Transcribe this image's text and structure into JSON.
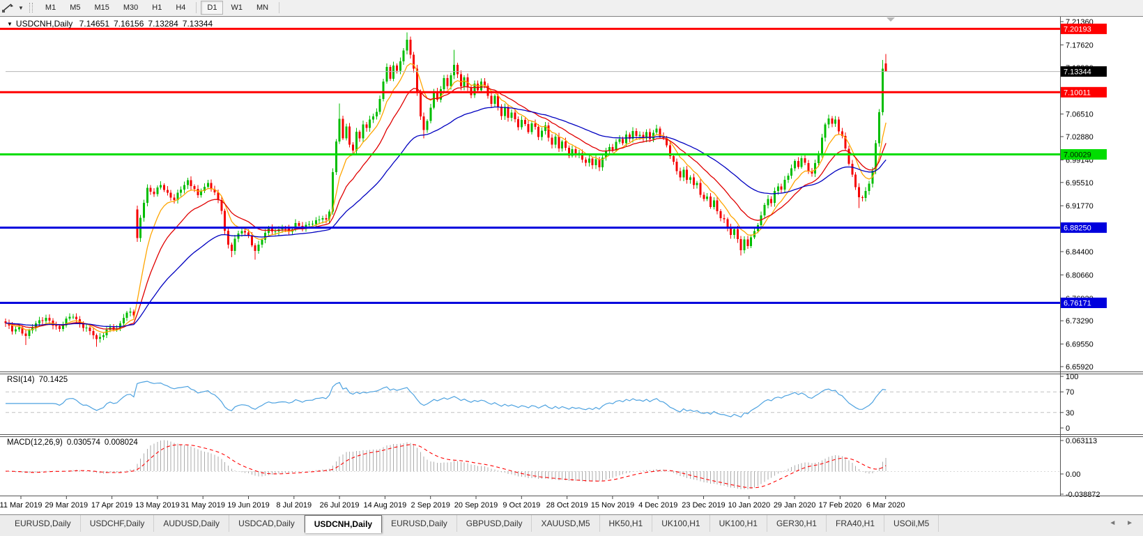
{
  "toolbar": {
    "timeframes": [
      "M1",
      "M5",
      "M15",
      "M30",
      "H1",
      "H4",
      "D1",
      "W1",
      "MN"
    ],
    "active_timeframe": "D1",
    "caret_icon": "▼"
  },
  "chart": {
    "title_marker": "▼",
    "symbol": "USDCNH,Daily",
    "ohlc": {
      "open": "7.14651",
      "high": "7.16156",
      "low": "7.13284",
      "close": "7.13344"
    }
  },
  "rsi_panel": {
    "label": "RSI(14)",
    "value": "70.1425",
    "axis_labels": [
      "100",
      "70",
      "30",
      "0"
    ],
    "level_lines": [
      70,
      30
    ],
    "line_color": "#4da2e0"
  },
  "macd_panel": {
    "label": "MACD(12,26,9)",
    "value_main": "0.030574",
    "value_signal": "0.008024",
    "axis_max": "0.063113",
    "axis_zero": "0.00",
    "axis_min": "-0.038872",
    "histogram_color": "#ababab",
    "signal_color": "#ff0000"
  },
  "price_scale": {
    "ticks": [
      "7.21360",
      "7.17620",
      "7.13990",
      "7.06510",
      "7.02880",
      "6.99140",
      "6.95510",
      "6.91770",
      "6.84400",
      "6.80660",
      "6.76920",
      "6.73290",
      "6.69550",
      "6.65920"
    ],
    "tags": [
      {
        "value": "7.20193",
        "bg": "#ff0000",
        "fg": "#ffffff"
      },
      {
        "value": "7.13344",
        "bg": "#000000",
        "fg": "#ffffff"
      },
      {
        "value": "7.10011",
        "bg": "#ff0000",
        "fg": "#ffffff"
      },
      {
        "value": "7.00029",
        "bg": "#00dd00",
        "fg": "#002200"
      },
      {
        "value": "6.88250",
        "bg": "#0000dd",
        "fg": "#ffffff"
      },
      {
        "value": "6.76171",
        "bg": "#0000dd",
        "fg": "#ffffff"
      }
    ]
  },
  "chart_data": {
    "type": "candlestick",
    "symbol": "USDCNH",
    "timeframe": "Daily",
    "title": "USDCNH,Daily",
    "x_axis_dates": [
      "11 Mar 2019",
      "29 Mar 2019",
      "17 Apr 2019",
      "13 May 2019",
      "31 May 2019",
      "19 Jun 2019",
      "8 Jul 2019",
      "26 Jul 2019",
      "14 Aug 2019",
      "2 Sep 2019",
      "20 Sep 2019",
      "9 Oct 2019",
      "28 Oct 2019",
      "15 Nov 2019",
      "4 Dec 2019",
      "23 Dec 2019",
      "10 Jan 2020",
      "29 Jan 2020",
      "17 Feb 2020",
      "6 Mar 2020"
    ],
    "y_axis_range": [
      6.655,
      7.224
    ],
    "grid": false,
    "current_price": 7.13344,
    "last_candle": {
      "open": 7.14651,
      "high": 7.16156,
      "low": 7.13284,
      "close": 7.13344
    },
    "levels": [
      {
        "price": 7.20193,
        "color": "#ff0000",
        "width": 3,
        "name": "resistance-upper"
      },
      {
        "price": 7.10011,
        "color": "#ff0000",
        "width": 3,
        "name": "resistance-lower"
      },
      {
        "price": 7.00029,
        "color": "#00dd00",
        "width": 3,
        "name": "pivot-7.00"
      },
      {
        "price": 6.8825,
        "color": "#0000dd",
        "width": 3,
        "name": "support-upper"
      },
      {
        "price": 6.76171,
        "color": "#0000dd",
        "width": 3,
        "name": "support-lower"
      }
    ],
    "candle_count": 262,
    "up_color": "#00bd00",
    "down_color": "#f50000",
    "close_waypoints": [
      [
        0,
        6.728
      ],
      [
        2,
        6.718
      ],
      [
        4,
        6.722
      ],
      [
        6,
        6.708
      ],
      [
        8,
        6.722
      ],
      [
        10,
        6.732
      ],
      [
        12,
        6.738
      ],
      [
        14,
        6.728
      ],
      [
        16,
        6.718
      ],
      [
        18,
        6.734
      ],
      [
        20,
        6.742
      ],
      [
        22,
        6.728
      ],
      [
        24,
        6.72
      ],
      [
        26,
        6.71
      ],
      [
        27,
        6.701
      ],
      [
        29,
        6.712
      ],
      [
        31,
        6.724
      ],
      [
        33,
        6.718
      ],
      [
        35,
        6.738
      ],
      [
        37,
        6.748
      ],
      [
        38,
        6.744
      ],
      [
        39,
        6.866
      ],
      [
        40,
        6.9
      ],
      [
        41,
        6.924
      ],
      [
        42,
        6.944
      ],
      [
        44,
        6.936
      ],
      [
        46,
        6.952
      ],
      [
        48,
        6.938
      ],
      [
        50,
        6.928
      ],
      [
        52,
        6.944
      ],
      [
        54,
        6.956
      ],
      [
        56,
        6.946
      ],
      [
        57,
        6.934
      ],
      [
        58,
        6.944
      ],
      [
        60,
        6.952
      ],
      [
        62,
        6.938
      ],
      [
        64,
        6.912
      ],
      [
        65,
        6.878
      ],
      [
        66,
        6.855
      ],
      [
        67,
        6.848
      ],
      [
        68,
        6.864
      ],
      [
        70,
        6.878
      ],
      [
        72,
        6.868
      ],
      [
        74,
        6.845
      ],
      [
        76,
        6.866
      ],
      [
        78,
        6.88
      ],
      [
        80,
        6.874
      ],
      [
        82,
        6.884
      ],
      [
        84,
        6.877
      ],
      [
        86,
        6.888
      ],
      [
        88,
        6.881
      ],
      [
        90,
        6.888
      ],
      [
        92,
        6.894
      ],
      [
        94,
        6.9
      ],
      [
        95,
        6.893
      ],
      [
        96,
        6.908
      ],
      [
        97,
        6.972
      ],
      [
        98,
        7.018
      ],
      [
        99,
        7.058
      ],
      [
        100,
        7.028
      ],
      [
        101,
        7.044
      ],
      [
        102,
        7.018
      ],
      [
        103,
        7.008
      ],
      [
        104,
        7.034
      ],
      [
        105,
        7.026
      ],
      [
        106,
        7.048
      ],
      [
        107,
        7.04
      ],
      [
        108,
        7.058
      ],
      [
        110,
        7.068
      ],
      [
        111,
        7.092
      ],
      [
        112,
        7.118
      ],
      [
        113,
        7.138
      ],
      [
        114,
        7.122
      ],
      [
        115,
        7.142
      ],
      [
        116,
        7.132
      ],
      [
        117,
        7.152
      ],
      [
        118,
        7.168
      ],
      [
        119,
        7.184
      ],
      [
        120,
        7.163
      ],
      [
        121,
        7.138
      ],
      [
        122,
        7.098
      ],
      [
        123,
        7.062
      ],
      [
        124,
        7.038
      ],
      [
        125,
        7.052
      ],
      [
        126,
        7.078
      ],
      [
        127,
        7.102
      ],
      [
        128,
        7.088
      ],
      [
        129,
        7.108
      ],
      [
        130,
        7.122
      ],
      [
        131,
        7.108
      ],
      [
        132,
        7.128
      ],
      [
        133,
        7.142
      ],
      [
        134,
        7.128
      ],
      [
        135,
        7.112
      ],
      [
        136,
        7.124
      ],
      [
        137,
        7.108
      ],
      [
        138,
        7.098
      ],
      [
        139,
        7.112
      ],
      [
        140,
        7.102
      ],
      [
        141,
        7.118
      ],
      [
        142,
        7.108
      ],
      [
        143,
        7.094
      ],
      [
        144,
        7.084
      ],
      [
        145,
        7.094
      ],
      [
        146,
        7.078
      ],
      [
        147,
        7.064
      ],
      [
        148,
        7.074
      ],
      [
        149,
        7.058
      ],
      [
        150,
        7.068
      ],
      [
        151,
        7.054
      ],
      [
        152,
        7.044
      ],
      [
        153,
        7.058
      ],
      [
        154,
        7.048
      ],
      [
        155,
        7.038
      ],
      [
        156,
        7.052
      ],
      [
        157,
        7.042
      ],
      [
        158,
        7.028
      ],
      [
        159,
        7.038
      ],
      [
        160,
        7.044
      ],
      [
        161,
        7.028
      ],
      [
        162,
        7.018
      ],
      [
        163,
        7.028
      ],
      [
        164,
        7.012
      ],
      [
        165,
        7.022
      ],
      [
        166,
        7.008
      ],
      [
        167,
        6.998
      ],
      [
        168,
        7.008
      ],
      [
        169,
        6.996
      ],
      [
        170,
        7.004
      ],
      [
        171,
        6.993
      ],
      [
        172,
        6.986
      ],
      [
        173,
        6.996
      ],
      [
        174,
        6.983
      ],
      [
        175,
        6.99
      ],
      [
        176,
        6.98
      ],
      [
        177,
        6.994
      ],
      [
        178,
        7.004
      ],
      [
        179,
        7.014
      ],
      [
        180,
        7.008
      ],
      [
        181,
        7.02
      ],
      [
        182,
        7.028
      ],
      [
        183,
        7.018
      ],
      [
        184,
        7.03
      ],
      [
        185,
        7.026
      ],
      [
        186,
        7.036
      ],
      [
        187,
        7.028
      ],
      [
        188,
        7.034
      ],
      [
        189,
        7.026
      ],
      [
        190,
        7.036
      ],
      [
        191,
        7.028
      ],
      [
        192,
        7.034
      ],
      [
        193,
        7.04
      ],
      [
        194,
        7.03
      ],
      [
        195,
        7.024
      ],
      [
        196,
        7.014
      ],
      [
        197,
        7.0
      ],
      [
        198,
        6.988
      ],
      [
        199,
        6.974
      ],
      [
        200,
        6.966
      ],
      [
        201,
        6.974
      ],
      [
        202,
        6.958
      ],
      [
        203,
        6.964
      ],
      [
        204,
        6.948
      ],
      [
        205,
        6.954
      ],
      [
        206,
        6.938
      ],
      [
        207,
        6.928
      ],
      [
        208,
        6.934
      ],
      [
        209,
        6.918
      ],
      [
        210,
        6.924
      ],
      [
        211,
        6.908
      ],
      [
        212,
        6.898
      ],
      [
        213,
        6.893
      ],
      [
        214,
        6.883
      ],
      [
        215,
        6.873
      ],
      [
        216,
        6.879
      ],
      [
        217,
        6.866
      ],
      [
        218,
        6.848
      ],
      [
        219,
        6.861
      ],
      [
        220,
        6.853
      ],
      [
        221,
        6.867
      ],
      [
        222,
        6.874
      ],
      [
        223,
        6.888
      ],
      [
        224,
        6.904
      ],
      [
        225,
        6.918
      ],
      [
        226,
        6.931
      ],
      [
        227,
        6.923
      ],
      [
        228,
        6.939
      ],
      [
        229,
        6.949
      ],
      [
        230,
        6.943
      ],
      [
        231,
        6.957
      ],
      [
        232,
        6.968
      ],
      [
        233,
        6.979
      ],
      [
        234,
        6.989
      ],
      [
        235,
        6.983
      ],
      [
        236,
        6.994
      ],
      [
        237,
        6.984
      ],
      [
        238,
        6.974
      ],
      [
        239,
        6.968
      ],
      [
        240,
        6.984
      ],
      [
        241,
        7.004
      ],
      [
        242,
        7.028
      ],
      [
        243,
        7.048
      ],
      [
        244,
        7.061
      ],
      [
        245,
        7.049
      ],
      [
        246,
        7.054
      ],
      [
        247,
        7.038
      ],
      [
        248,
        7.028
      ],
      [
        249,
        7.008
      ],
      [
        250,
        6.988
      ],
      [
        251,
        6.968
      ],
      [
        252,
        6.948
      ],
      [
        253,
        6.934
      ],
      [
        254,
        6.929
      ],
      [
        255,
        6.94
      ],
      [
        256,
        6.954
      ],
      [
        257,
        6.974
      ],
      [
        258,
        7.018
      ],
      [
        259,
        7.068
      ],
      [
        260,
        7.138
      ],
      [
        261,
        7.13344
      ]
    ],
    "open_overrides": {
      "39": 6.912,
      "261": 7.14651
    },
    "high_overrides": {
      "99": 7.082,
      "119": 7.196,
      "133": 7.168,
      "260": 7.152,
      "261": 7.16156
    },
    "low_overrides": {
      "6": 6.694,
      "27": 6.691,
      "67": 6.835,
      "74": 6.831,
      "124": 7.026,
      "218": 6.838,
      "253": 6.914,
      "261": 7.13284
    },
    "moving_averages": [
      {
        "period": 8,
        "color": "#ffa500",
        "name": "ma-fast-orange"
      },
      {
        "period": 18,
        "color": "#e00000",
        "name": "ma-mid-red"
      },
      {
        "period": 45,
        "color": "#0000c0",
        "name": "ma-slow-blue"
      }
    ],
    "indicators": {
      "rsi_period": 14,
      "macd": [
        12,
        26,
        9
      ]
    }
  },
  "tabs": {
    "items": [
      "EURUSD,Daily",
      "USDCHF,Daily",
      "AUDUSD,Daily",
      "USDCAD,Daily",
      "USDCNH,Daily",
      "EURUSD,Daily",
      "GBPUSD,Daily",
      "XAUUSD,M5",
      "HK50,H1",
      "UK100,H1",
      "UK100,H1",
      "GER30,H1",
      "FRA40,H1",
      "USOil,M5"
    ],
    "active_index": 4,
    "scroll_left_icon": "◄",
    "scroll_right_icon": "►"
  }
}
